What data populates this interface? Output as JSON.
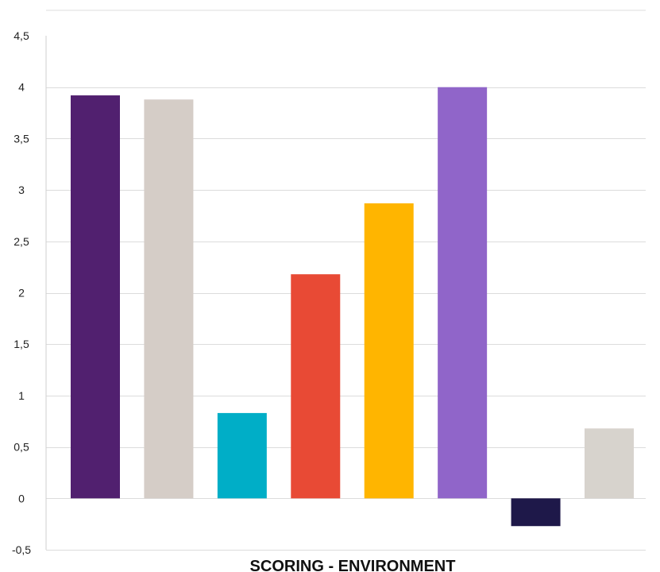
{
  "chart_data": {
    "type": "bar",
    "title": "",
    "xlabel": "SCORING - ENVIRONMENT",
    "ylabel": "",
    "ylim": [
      -0.5,
      4.5
    ],
    "yticks": [
      -0.5,
      0,
      0.5,
      1,
      1.5,
      2,
      2.5,
      3,
      3.5,
      4,
      4.5
    ],
    "ytick_labels": [
      "-0,5",
      "0",
      "0,5",
      "1",
      "1,5",
      "2",
      "2,5",
      "3",
      "3,5",
      "4",
      "4,5"
    ],
    "grid": true,
    "legend": "none",
    "categories": [
      "",
      "",
      "",
      "",
      "",
      "",
      "",
      ""
    ],
    "values": [
      3.92,
      3.88,
      0.83,
      2.18,
      2.87,
      4.0,
      -0.27,
      0.68
    ],
    "colors": [
      "#51206f",
      "#d5cdc7",
      "#00aec7",
      "#e84a35",
      "#ffb500",
      "#9065c9",
      "#1e1849",
      "#d7d3cd"
    ]
  }
}
